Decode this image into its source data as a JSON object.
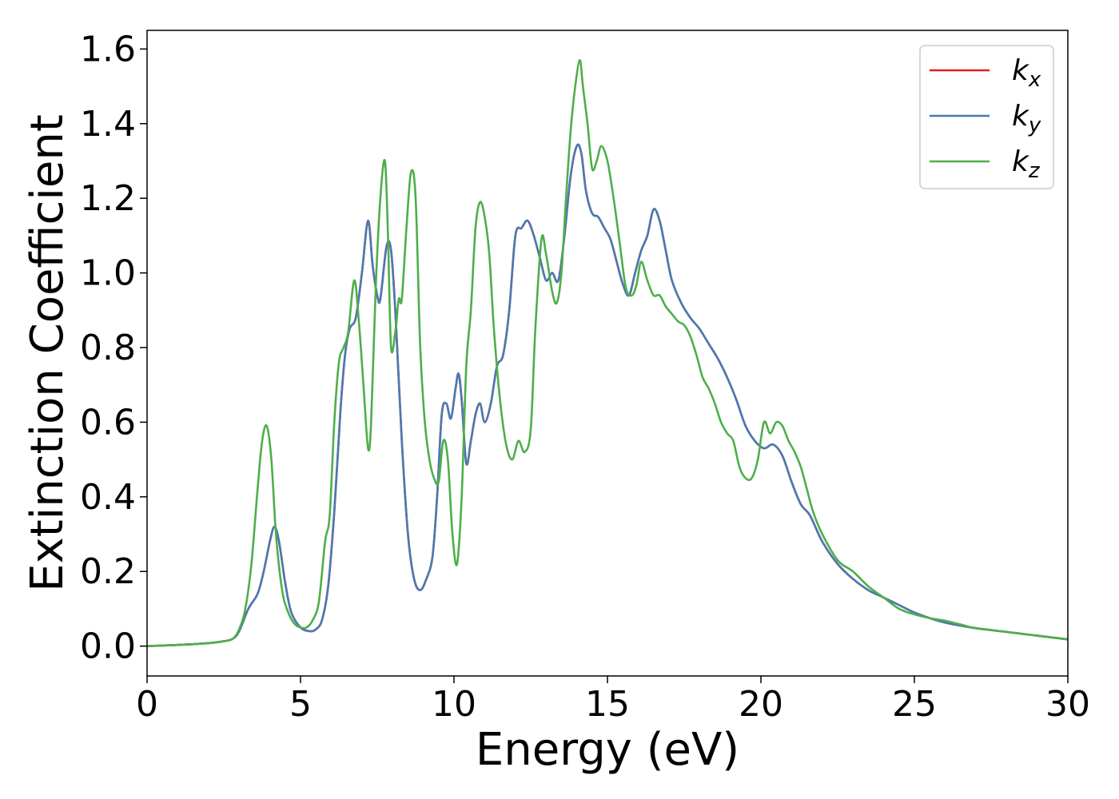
{
  "chart_data": {
    "type": "line",
    "title": "",
    "xlabel": "Energy (eV)",
    "ylabel": "Extinction Coefficient",
    "xlim": [
      0,
      30
    ],
    "ylim": [
      -0.08,
      1.65
    ],
    "xticks": [
      "0",
      "5",
      "10",
      "15",
      "20",
      "25",
      "30"
    ],
    "yticks": [
      "0.0",
      "0.2",
      "0.4",
      "0.6",
      "0.8",
      "1.0",
      "1.2",
      "1.4",
      "1.6"
    ],
    "grid": false,
    "legend_position": "top-right",
    "series": [
      {
        "name": "k",
        "subscript": "x",
        "color": "#e41a1c",
        "x": [
          0,
          1,
          2,
          2.5,
          2.8,
          3.0,
          3.3,
          3.6,
          3.8,
          4.0,
          4.15,
          4.3,
          4.5,
          4.7,
          5.0,
          5.3,
          5.5,
          5.7,
          5.9,
          6.1,
          6.3,
          6.45,
          6.6,
          6.8,
          7.0,
          7.2,
          7.35,
          7.5,
          7.6,
          7.8,
          7.95,
          8.1,
          8.3,
          8.5,
          8.7,
          8.9,
          9.1,
          9.3,
          9.45,
          9.6,
          9.75,
          9.9,
          10.05,
          10.15,
          10.25,
          10.4,
          10.55,
          10.7,
          10.85,
          11.0,
          11.2,
          11.4,
          11.6,
          11.8,
          12.0,
          12.2,
          12.4,
          12.6,
          12.8,
          13.0,
          13.2,
          13.4,
          13.6,
          13.8,
          14.0,
          14.15,
          14.3,
          14.5,
          14.7,
          14.9,
          15.1,
          15.3,
          15.5,
          15.7,
          15.9,
          16.1,
          16.3,
          16.5,
          16.7,
          16.9,
          17.1,
          17.4,
          17.7,
          18.0,
          18.3,
          18.6,
          18.9,
          19.2,
          19.5,
          19.8,
          20.1,
          20.4,
          20.7,
          21.0,
          21.3,
          21.6,
          22.0,
          22.5,
          23.0,
          23.5,
          24.0,
          24.5,
          25.0,
          25.5,
          26.0,
          26.5,
          27.0,
          28.0,
          29.0,
          30.0
        ],
        "y": [
          0.0,
          0.003,
          0.008,
          0.013,
          0.02,
          0.04,
          0.1,
          0.14,
          0.2,
          0.28,
          0.32,
          0.28,
          0.17,
          0.09,
          0.05,
          0.04,
          0.045,
          0.07,
          0.16,
          0.36,
          0.63,
          0.78,
          0.85,
          0.88,
          1.0,
          1.14,
          1.02,
          0.94,
          0.93,
          1.07,
          1.06,
          0.88,
          0.55,
          0.3,
          0.18,
          0.15,
          0.18,
          0.24,
          0.4,
          0.62,
          0.65,
          0.61,
          0.69,
          0.73,
          0.66,
          0.49,
          0.55,
          0.62,
          0.65,
          0.6,
          0.65,
          0.75,
          0.78,
          0.9,
          1.1,
          1.12,
          1.14,
          1.1,
          1.04,
          0.98,
          1.0,
          0.98,
          1.1,
          1.26,
          1.34,
          1.32,
          1.22,
          1.16,
          1.15,
          1.12,
          1.09,
          1.03,
          0.97,
          0.94,
          1.0,
          1.06,
          1.1,
          1.17,
          1.14,
          1.06,
          0.98,
          0.92,
          0.88,
          0.85,
          0.81,
          0.77,
          0.72,
          0.66,
          0.59,
          0.55,
          0.53,
          0.54,
          0.51,
          0.44,
          0.38,
          0.35,
          0.28,
          0.22,
          0.18,
          0.15,
          0.13,
          0.11,
          0.09,
          0.075,
          0.063,
          0.055,
          0.048,
          0.038,
          0.028,
          0.018
        ]
      },
      {
        "name": "k",
        "subscript": "y",
        "color": "#4a7ab3",
        "x": [
          0,
          1,
          2,
          2.5,
          2.8,
          3.0,
          3.3,
          3.6,
          3.8,
          4.0,
          4.15,
          4.3,
          4.5,
          4.7,
          5.0,
          5.3,
          5.5,
          5.7,
          5.9,
          6.1,
          6.3,
          6.45,
          6.6,
          6.8,
          7.0,
          7.2,
          7.35,
          7.5,
          7.6,
          7.8,
          7.95,
          8.1,
          8.3,
          8.5,
          8.7,
          8.9,
          9.1,
          9.3,
          9.45,
          9.6,
          9.75,
          9.9,
          10.05,
          10.15,
          10.25,
          10.4,
          10.55,
          10.7,
          10.85,
          11.0,
          11.2,
          11.4,
          11.6,
          11.8,
          12.0,
          12.2,
          12.4,
          12.6,
          12.8,
          13.0,
          13.2,
          13.4,
          13.6,
          13.8,
          14.0,
          14.15,
          14.3,
          14.5,
          14.7,
          14.9,
          15.1,
          15.3,
          15.5,
          15.7,
          15.9,
          16.1,
          16.3,
          16.5,
          16.7,
          16.9,
          17.1,
          17.4,
          17.7,
          18.0,
          18.3,
          18.6,
          18.9,
          19.2,
          19.5,
          19.8,
          20.1,
          20.4,
          20.7,
          21.0,
          21.3,
          21.6,
          22.0,
          22.5,
          23.0,
          23.5,
          24.0,
          24.5,
          25.0,
          25.5,
          26.0,
          26.5,
          27.0,
          28.0,
          29.0,
          30.0
        ],
        "y": [
          0.0,
          0.003,
          0.008,
          0.013,
          0.02,
          0.04,
          0.1,
          0.14,
          0.2,
          0.28,
          0.32,
          0.28,
          0.17,
          0.09,
          0.05,
          0.04,
          0.045,
          0.07,
          0.16,
          0.36,
          0.63,
          0.78,
          0.85,
          0.88,
          1.0,
          1.14,
          1.02,
          0.94,
          0.93,
          1.07,
          1.06,
          0.88,
          0.55,
          0.3,
          0.18,
          0.15,
          0.18,
          0.24,
          0.4,
          0.62,
          0.65,
          0.61,
          0.69,
          0.73,
          0.66,
          0.49,
          0.55,
          0.62,
          0.65,
          0.6,
          0.65,
          0.75,
          0.78,
          0.9,
          1.1,
          1.12,
          1.14,
          1.1,
          1.04,
          0.98,
          1.0,
          0.98,
          1.1,
          1.26,
          1.34,
          1.32,
          1.22,
          1.16,
          1.15,
          1.12,
          1.09,
          1.03,
          0.97,
          0.94,
          1.0,
          1.06,
          1.1,
          1.17,
          1.14,
          1.06,
          0.98,
          0.92,
          0.88,
          0.85,
          0.81,
          0.77,
          0.72,
          0.66,
          0.59,
          0.55,
          0.53,
          0.54,
          0.51,
          0.44,
          0.38,
          0.35,
          0.28,
          0.22,
          0.18,
          0.15,
          0.13,
          0.11,
          0.09,
          0.075,
          0.063,
          0.055,
          0.048,
          0.038,
          0.028,
          0.018
        ]
      },
      {
        "name": "k",
        "subscript": "z",
        "color": "#4daf4a",
        "x": [
          0,
          1,
          2,
          2.5,
          2.8,
          3.0,
          3.2,
          3.4,
          3.6,
          3.75,
          3.9,
          4.05,
          4.2,
          4.4,
          4.6,
          4.8,
          5.0,
          5.2,
          5.4,
          5.6,
          5.8,
          5.95,
          6.1,
          6.25,
          6.4,
          6.55,
          6.75,
          6.9,
          7.05,
          7.2,
          7.3,
          7.45,
          7.6,
          7.75,
          7.85,
          7.95,
          8.1,
          8.2,
          8.3,
          8.45,
          8.6,
          8.75,
          8.9,
          9.05,
          9.2,
          9.35,
          9.5,
          9.65,
          9.8,
          9.95,
          10.1,
          10.25,
          10.4,
          10.55,
          10.7,
          10.85,
          11.0,
          11.15,
          11.3,
          11.5,
          11.7,
          11.9,
          12.1,
          12.3,
          12.5,
          12.65,
          12.85,
          13.0,
          13.2,
          13.35,
          13.5,
          13.65,
          13.8,
          13.95,
          14.1,
          14.2,
          14.35,
          14.5,
          14.65,
          14.8,
          15.0,
          15.2,
          15.4,
          15.6,
          15.8,
          15.95,
          16.1,
          16.3,
          16.5,
          16.7,
          16.9,
          17.1,
          17.3,
          17.5,
          17.7,
          17.9,
          18.1,
          18.3,
          18.5,
          18.7,
          18.9,
          19.1,
          19.3,
          19.5,
          19.7,
          19.9,
          20.1,
          20.3,
          20.5,
          20.7,
          20.9,
          21.1,
          21.3,
          21.5,
          21.7,
          22.0,
          22.5,
          23.0,
          23.5,
          24.0,
          24.5,
          25.0,
          25.5,
          26.0,
          26.5,
          27.0,
          28.0,
          29.0,
          30.0
        ],
        "y": [
          0.0,
          0.003,
          0.008,
          0.013,
          0.02,
          0.045,
          0.1,
          0.22,
          0.42,
          0.55,
          0.59,
          0.5,
          0.3,
          0.15,
          0.09,
          0.06,
          0.05,
          0.05,
          0.07,
          0.12,
          0.28,
          0.35,
          0.6,
          0.76,
          0.8,
          0.84,
          0.98,
          0.87,
          0.7,
          0.53,
          0.6,
          0.96,
          1.2,
          1.3,
          1.1,
          0.8,
          0.85,
          0.93,
          0.93,
          1.12,
          1.27,
          1.2,
          0.8,
          0.6,
          0.5,
          0.45,
          0.44,
          0.55,
          0.5,
          0.3,
          0.22,
          0.4,
          0.75,
          0.9,
          1.12,
          1.19,
          1.15,
          1.05,
          0.85,
          0.66,
          0.54,
          0.5,
          0.55,
          0.52,
          0.58,
          0.85,
          1.09,
          1.05,
          0.95,
          0.92,
          1.0,
          1.2,
          1.38,
          1.5,
          1.57,
          1.5,
          1.4,
          1.28,
          1.3,
          1.34,
          1.3,
          1.2,
          1.08,
          0.96,
          0.94,
          0.97,
          1.03,
          0.98,
          0.94,
          0.94,
          0.91,
          0.89,
          0.87,
          0.86,
          0.83,
          0.78,
          0.72,
          0.69,
          0.65,
          0.6,
          0.57,
          0.55,
          0.48,
          0.45,
          0.45,
          0.5,
          0.6,
          0.57,
          0.6,
          0.59,
          0.55,
          0.52,
          0.48,
          0.42,
          0.36,
          0.3,
          0.23,
          0.2,
          0.16,
          0.13,
          0.1,
          0.085,
          0.075,
          0.068,
          0.058,
          0.048,
          0.038,
          0.028,
          0.018
        ]
      }
    ]
  }
}
